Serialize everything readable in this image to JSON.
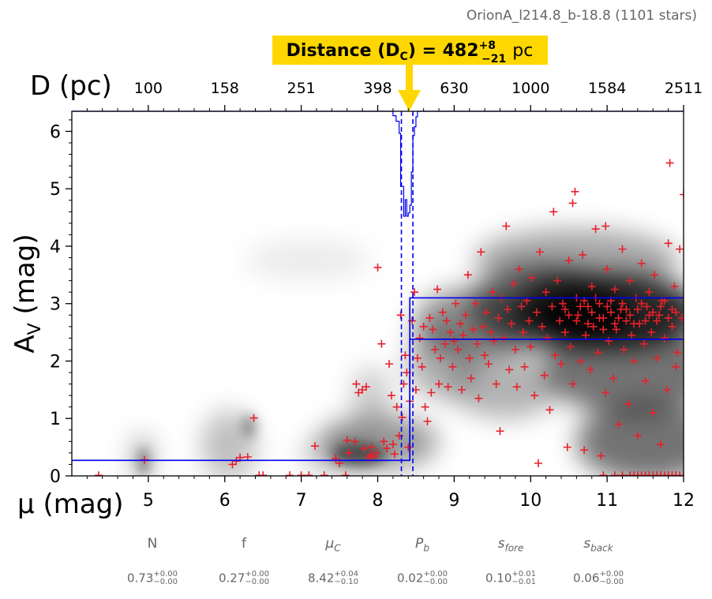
{
  "chart_data": {
    "type": "scatter",
    "field_label": "OrionA_l214.8_b-18.8 (1101 stars)",
    "annotation": {
      "label": "Distance",
      "symbol": "D",
      "symbol_sub": "C",
      "value": "482",
      "err_plus": "+8",
      "err_minus": "−21",
      "unit": "pc",
      "highlight_color": "#FFD700"
    },
    "xlabel": "μ (mag)",
    "ylabel": "A",
    "ylabel_sub": "V",
    "ylabel_unit": " (mag)",
    "xlim": [
      4,
      12
    ],
    "ylim": [
      0,
      6.35
    ],
    "xticks": [
      5,
      6,
      7,
      8,
      9,
      10,
      11,
      12
    ],
    "yticks": [
      0,
      1,
      2,
      3,
      4,
      5,
      6
    ],
    "top_axis": {
      "label": "D (pc)",
      "ticks": [
        {
          "mu": 5,
          "label": "100"
        },
        {
          "mu": 6,
          "label": "158"
        },
        {
          "mu": 7,
          "label": "251"
        },
        {
          "mu": 8,
          "label": "398"
        },
        {
          "mu": 9,
          "label": "630"
        },
        {
          "mu": 10,
          "label": "1000"
        },
        {
          "mu": 11,
          "label": "1584"
        },
        {
          "mu": 12,
          "label": "2511"
        }
      ]
    },
    "colors": {
      "points": "#E8202A",
      "model": "#0000EE",
      "axis": "#000000"
    },
    "model": {
      "mu_cloud": 8.42,
      "mu_lo": 8.31,
      "mu_hi": 8.46,
      "av_fore": 0.27,
      "av_back_lo": 2.38,
      "av_back_hi": 3.1
    },
    "points": [
      [
        4.35,
        0.01
      ],
      [
        4.95,
        0.28
      ],
      [
        6.1,
        0.2
      ],
      [
        6.15,
        0.26
      ],
      [
        6.2,
        0.32
      ],
      [
        6.3,
        0.33
      ],
      [
        6.38,
        1.01
      ],
      [
        6.45,
        0.01
      ],
      [
        6.5,
        0.01
      ],
      [
        6.85,
        0.01
      ],
      [
        7.0,
        0.01
      ],
      [
        7.1,
        0.01
      ],
      [
        7.18,
        0.52
      ],
      [
        7.3,
        0.01
      ],
      [
        7.45,
        0.3
      ],
      [
        7.5,
        0.22
      ],
      [
        7.58,
        0.01
      ],
      [
        7.62,
        0.4
      ],
      [
        7.6,
        0.62
      ],
      [
        7.7,
        0.6
      ],
      [
        7.72,
        1.6
      ],
      [
        7.75,
        1.45
      ],
      [
        7.8,
        1.5
      ],
      [
        7.82,
        0.48
      ],
      [
        7.85,
        1.55
      ],
      [
        7.88,
        0.32
      ],
      [
        7.9,
        0.36
      ],
      [
        7.92,
        0.5
      ],
      [
        7.95,
        0.33
      ],
      [
        7.98,
        0.4
      ],
      [
        8.0,
        3.63
      ],
      [
        8.05,
        2.3
      ],
      [
        8.08,
        0.6
      ],
      [
        8.12,
        0.48
      ],
      [
        8.15,
        1.95
      ],
      [
        8.18,
        1.4
      ],
      [
        8.2,
        0.55
      ],
      [
        8.22,
        0.38
      ],
      [
        8.25,
        1.2
      ],
      [
        8.28,
        0.7
      ],
      [
        8.3,
        2.8
      ],
      [
        8.32,
        1.02
      ],
      [
        8.34,
        1.6
      ],
      [
        8.36,
        2.1
      ],
      [
        8.38,
        1.8
      ],
      [
        8.4,
        0.5
      ],
      [
        8.42,
        1.3
      ],
      [
        8.45,
        2.7
      ],
      [
        8.48,
        3.2
      ],
      [
        8.5,
        1.5
      ],
      [
        8.52,
        2.05
      ],
      [
        8.55,
        2.4
      ],
      [
        8.58,
        1.9
      ],
      [
        8.6,
        2.6
      ],
      [
        8.62,
        1.2
      ],
      [
        8.65,
        0.95
      ],
      [
        8.68,
        2.75
      ],
      [
        8.7,
        1.45
      ],
      [
        8.72,
        2.55
      ],
      [
        8.75,
        2.2
      ],
      [
        8.78,
        3.25
      ],
      [
        8.8,
        1.6
      ],
      [
        8.82,
        2.05
      ],
      [
        8.85,
        2.85
      ],
      [
        8.88,
        2.3
      ],
      [
        8.9,
        2.7
      ],
      [
        8.92,
        1.55
      ],
      [
        8.95,
        2.5
      ],
      [
        8.98,
        1.9
      ],
      [
        9.0,
        2.35
      ],
      [
        9.02,
        3.0
      ],
      [
        9.05,
        2.2
      ],
      [
        9.08,
        2.65
      ],
      [
        9.1,
        1.5
      ],
      [
        9.12,
        2.45
      ],
      [
        9.15,
        2.8
      ],
      [
        9.18,
        3.5
      ],
      [
        9.2,
        2.05
      ],
      [
        9.22,
        1.7
      ],
      [
        9.25,
        2.55
      ],
      [
        9.28,
        3.0
      ],
      [
        9.3,
        2.3
      ],
      [
        9.32,
        1.35
      ],
      [
        9.35,
        3.9
      ],
      [
        9.38,
        2.6
      ],
      [
        9.4,
        2.1
      ],
      [
        9.42,
        2.85
      ],
      [
        9.45,
        1.95
      ],
      [
        9.48,
        2.5
      ],
      [
        9.5,
        3.2
      ],
      [
        9.52,
        2.35
      ],
      [
        9.55,
        1.6
      ],
      [
        9.58,
        2.75
      ],
      [
        9.6,
        0.78
      ],
      [
        9.62,
        3.1
      ],
      [
        9.65,
        2.4
      ],
      [
        9.68,
        4.35
      ],
      [
        9.7,
        2.9
      ],
      [
        9.72,
        1.85
      ],
      [
        9.75,
        2.65
      ],
      [
        9.78,
        3.35
      ],
      [
        9.8,
        2.2
      ],
      [
        9.82,
        1.55
      ],
      [
        9.85,
        3.6
      ],
      [
        9.88,
        2.95
      ],
      [
        9.9,
        2.5
      ],
      [
        9.92,
        1.9
      ],
      [
        9.95,
        3.05
      ],
      [
        9.98,
        2.7
      ],
      [
        10.0,
        2.25
      ],
      [
        10.02,
        3.45
      ],
      [
        10.05,
        1.4
      ],
      [
        10.08,
        2.85
      ],
      [
        10.1,
        0.22
      ],
      [
        10.12,
        3.9
      ],
      [
        10.15,
        2.6
      ],
      [
        10.18,
        1.75
      ],
      [
        10.2,
        3.2
      ],
      [
        10.22,
        2.4
      ],
      [
        10.25,
        1.15
      ],
      [
        10.28,
        2.95
      ],
      [
        10.3,
        4.6
      ],
      [
        10.32,
        2.1
      ],
      [
        10.35,
        3.4
      ],
      [
        10.38,
        2.7
      ],
      [
        10.4,
        1.95
      ],
      [
        10.42,
        3.0
      ],
      [
        10.45,
        2.5
      ],
      [
        10.48,
        0.5
      ],
      [
        10.5,
        3.75
      ],
      [
        10.52,
        2.25
      ],
      [
        10.55,
        1.6
      ],
      [
        10.58,
        4.95
      ],
      [
        10.6,
        3.1
      ],
      [
        10.62,
        2.8
      ],
      [
        10.65,
        2.0
      ],
      [
        10.68,
        3.85
      ],
      [
        10.7,
        0.45
      ],
      [
        10.72,
        2.45
      ],
      [
        10.75,
        2.95
      ],
      [
        10.78,
        1.85
      ],
      [
        10.8,
        3.3
      ],
      [
        10.82,
        2.6
      ],
      [
        10.85,
        4.3
      ],
      [
        10.88,
        2.15
      ],
      [
        10.9,
        3.0
      ],
      [
        10.92,
        0.35
      ],
      [
        10.95,
        2.75
      ],
      [
        10.98,
        1.45
      ],
      [
        11.0,
        3.6
      ],
      [
        11.02,
        2.35
      ],
      [
        11.05,
        2.85
      ],
      [
        11.08,
        1.7
      ],
      [
        11.1,
        3.25
      ],
      [
        11.12,
        2.55
      ],
      [
        11.15,
        0.9
      ],
      [
        11.18,
        2.9
      ],
      [
        11.2,
        3.95
      ],
      [
        11.22,
        2.2
      ],
      [
        11.25,
        2.7
      ],
      [
        11.28,
        1.25
      ],
      [
        11.3,
        3.4
      ],
      [
        11.32,
        2.45
      ],
      [
        11.35,
        2.0
      ],
      [
        11.38,
        3.1
      ],
      [
        11.4,
        0.7
      ],
      [
        11.42,
        2.65
      ],
      [
        11.45,
        3.7
      ],
      [
        11.48,
        2.3
      ],
      [
        11.5,
        1.65
      ],
      [
        11.52,
        2.95
      ],
      [
        11.55,
        3.2
      ],
      [
        11.58,
        2.5
      ],
      [
        11.6,
        1.1
      ],
      [
        11.62,
        3.5
      ],
      [
        11.65,
        2.05
      ],
      [
        11.68,
        2.8
      ],
      [
        11.7,
        0.55
      ],
      [
        11.72,
        3.05
      ],
      [
        11.75,
        2.4
      ],
      [
        11.78,
        1.5
      ],
      [
        11.8,
        4.05
      ],
      [
        11.82,
        5.45
      ],
      [
        11.85,
        2.6
      ],
      [
        11.88,
        3.3
      ],
      [
        11.9,
        1.9
      ],
      [
        11.92,
        2.15
      ],
      [
        11.95,
        3.95
      ],
      [
        11.98,
        2.75
      ],
      [
        12.0,
        4.9
      ],
      [
        10.55,
        4.75
      ],
      [
        10.98,
        4.35
      ],
      [
        10.45,
        2.9
      ],
      [
        10.6,
        2.7
      ],
      [
        10.7,
        3.05
      ],
      [
        10.8,
        2.85
      ],
      [
        10.9,
        2.75
      ],
      [
        11.0,
        2.95
      ],
      [
        11.1,
        2.65
      ],
      [
        11.2,
        3.0
      ],
      [
        11.3,
        2.8
      ],
      [
        11.4,
        2.9
      ],
      [
        11.5,
        2.7
      ],
      [
        11.6,
        2.85
      ],
      [
        11.7,
        2.95
      ],
      [
        11.8,
        2.75
      ],
      [
        11.9,
        2.85
      ],
      [
        10.5,
        2.8
      ],
      [
        10.65,
        2.95
      ],
      [
        10.75,
        2.65
      ],
      [
        10.85,
        3.1
      ],
      [
        10.95,
        2.55
      ],
      [
        11.05,
        3.05
      ],
      [
        11.15,
        2.75
      ],
      [
        11.25,
        2.9
      ],
      [
        11.35,
        2.65
      ],
      [
        11.45,
        3.0
      ],
      [
        11.55,
        2.8
      ],
      [
        11.65,
        2.7
      ],
      [
        11.75,
        3.05
      ],
      [
        11.85,
        2.9
      ],
      [
        10.95,
        0.01
      ],
      [
        11.1,
        0.01
      ],
      [
        11.2,
        0.01
      ],
      [
        11.3,
        0.01
      ],
      [
        11.35,
        0.01
      ],
      [
        11.4,
        0.01
      ],
      [
        11.45,
        0.01
      ],
      [
        11.5,
        0.01
      ],
      [
        11.55,
        0.01
      ],
      [
        11.6,
        0.01
      ],
      [
        11.65,
        0.01
      ],
      [
        11.7,
        0.01
      ],
      [
        11.75,
        0.01
      ],
      [
        11.8,
        0.01
      ],
      [
        11.85,
        0.01
      ],
      [
        11.9,
        0.01
      ],
      [
        11.95,
        0.01
      ],
      [
        12.0,
        0.01
      ]
    ],
    "params": [
      {
        "name": "N",
        "italic": false,
        "sub": "",
        "value": "0.73",
        "plus": "+0.00",
        "minus": "−0.00"
      },
      {
        "name": "f",
        "italic": false,
        "sub": "",
        "value": "0.27",
        "plus": "+0.00",
        "minus": "−0.00"
      },
      {
        "name": "μ",
        "italic": true,
        "sub": "C",
        "value": "8.42",
        "plus": "+0.04",
        "minus": "−0.10"
      },
      {
        "name": "P",
        "italic": true,
        "sub": "b",
        "value": "0.02",
        "plus": "+0.00",
        "minus": "−0.00"
      },
      {
        "name": "s",
        "italic": true,
        "sub": "fore",
        "value": "0.10",
        "plus": "+0.01",
        "minus": "−0.01"
      },
      {
        "name": "s",
        "italic": true,
        "sub": "back",
        "value": "0.06",
        "plus": "+0.00",
        "minus": "−0.00"
      }
    ]
  }
}
